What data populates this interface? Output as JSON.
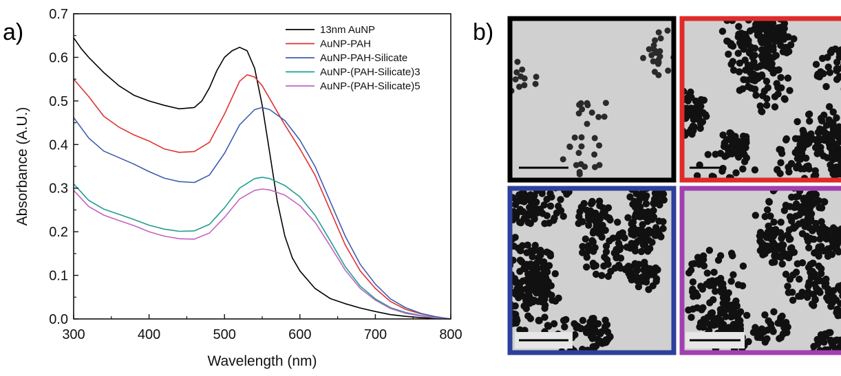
{
  "panels": {
    "a": "a)",
    "b": "b)"
  },
  "chart_data": {
    "type": "line",
    "title": "",
    "xlabel": "Wavelength (nm)",
    "ylabel": "Absorbance (A.U.)",
    "xlim": [
      300,
      800
    ],
    "ylim": [
      0.0,
      0.7
    ],
    "xticks": [
      300,
      400,
      500,
      600,
      700,
      800
    ],
    "yticks": [
      0.0,
      0.1,
      0.2,
      0.3,
      0.4,
      0.5,
      0.6,
      0.7
    ],
    "xtick_labels": [
      "300",
      "400",
      "500",
      "600",
      "700",
      "800"
    ],
    "ytick_labels": [
      "0.0",
      "0.1",
      "0.2",
      "0.3",
      "0.4",
      "0.5",
      "0.6",
      "0.7"
    ],
    "grid": false,
    "legend_position": "top-right",
    "series": [
      {
        "name": "13nm AuNP",
        "color": "#000000",
        "x": [
          300,
          310,
          320,
          340,
          360,
          380,
          400,
          420,
          440,
          460,
          470,
          480,
          490,
          500,
          510,
          520,
          530,
          540,
          550,
          560,
          570,
          580,
          590,
          600,
          620,
          640,
          660,
          680,
          700,
          720,
          740,
          760,
          780,
          800
        ],
        "y": [
          0.645,
          0.62,
          0.6,
          0.565,
          0.535,
          0.513,
          0.5,
          0.49,
          0.482,
          0.485,
          0.5,
          0.53,
          0.57,
          0.6,
          0.615,
          0.623,
          0.615,
          0.575,
          0.49,
          0.38,
          0.27,
          0.19,
          0.14,
          0.11,
          0.07,
          0.047,
          0.035,
          0.025,
          0.017,
          0.01,
          0.006,
          0.003,
          0.001,
          0.0
        ]
      },
      {
        "name": "AuNP-PAH",
        "color": "#e03030",
        "x": [
          300,
          320,
          340,
          360,
          380,
          400,
          420,
          440,
          460,
          480,
          500,
          520,
          530,
          540,
          550,
          560,
          580,
          600,
          620,
          640,
          660,
          680,
          700,
          720,
          740,
          760,
          780,
          800
        ],
        "y": [
          0.55,
          0.51,
          0.465,
          0.44,
          0.422,
          0.408,
          0.39,
          0.382,
          0.384,
          0.405,
          0.47,
          0.545,
          0.56,
          0.555,
          0.535,
          0.505,
          0.445,
          0.39,
          0.33,
          0.25,
          0.17,
          0.11,
          0.07,
          0.04,
          0.022,
          0.012,
          0.005,
          0.0
        ]
      },
      {
        "name": "AuNP-PAH-Silicate",
        "color": "#3f5bb0",
        "x": [
          300,
          320,
          340,
          360,
          380,
          400,
          420,
          440,
          460,
          480,
          500,
          520,
          540,
          550,
          560,
          580,
          600,
          620,
          640,
          660,
          680,
          700,
          720,
          740,
          760,
          780,
          800
        ],
        "y": [
          0.462,
          0.415,
          0.385,
          0.37,
          0.355,
          0.338,
          0.323,
          0.315,
          0.313,
          0.33,
          0.38,
          0.445,
          0.48,
          0.485,
          0.48,
          0.455,
          0.41,
          0.35,
          0.27,
          0.19,
          0.125,
          0.08,
          0.046,
          0.026,
          0.013,
          0.005,
          0.0
        ]
      },
      {
        "name": "AuNP-(PAH-Silicate)3",
        "color": "#1f9e8e",
        "x": [
          300,
          320,
          340,
          360,
          380,
          400,
          420,
          440,
          460,
          480,
          500,
          520,
          540,
          550,
          560,
          580,
          600,
          620,
          640,
          660,
          680,
          700,
          720,
          740,
          760,
          780,
          800
        ],
        "y": [
          0.31,
          0.272,
          0.252,
          0.24,
          0.228,
          0.215,
          0.206,
          0.201,
          0.202,
          0.217,
          0.255,
          0.3,
          0.322,
          0.325,
          0.322,
          0.306,
          0.28,
          0.238,
          0.18,
          0.12,
          0.075,
          0.046,
          0.026,
          0.015,
          0.008,
          0.003,
          0.0
        ]
      },
      {
        "name": "AuNP-(PAH-Silicate)5",
        "color": "#c262c2",
        "x": [
          300,
          320,
          340,
          360,
          380,
          400,
          420,
          440,
          460,
          480,
          500,
          520,
          540,
          550,
          560,
          580,
          600,
          620,
          640,
          660,
          680,
          700,
          720,
          740,
          760,
          780,
          800
        ],
        "y": [
          0.295,
          0.258,
          0.238,
          0.226,
          0.214,
          0.2,
          0.19,
          0.184,
          0.183,
          0.197,
          0.233,
          0.275,
          0.295,
          0.298,
          0.296,
          0.284,
          0.26,
          0.222,
          0.168,
          0.112,
          0.07,
          0.043,
          0.024,
          0.013,
          0.007,
          0.002,
          0.0
        ]
      }
    ]
  },
  "micrographs": [
    {
      "frame_color": "#000000",
      "series": "13nm AuNP"
    },
    {
      "frame_color": "#e02a2a",
      "series": "AuNP-PAH"
    },
    {
      "frame_color": "#2e3f9b",
      "series": "AuNP-PAH-Silicate"
    },
    {
      "frame_color": "#a23fb0",
      "series": "AuNP-(PAH-Silicate)5"
    }
  ]
}
